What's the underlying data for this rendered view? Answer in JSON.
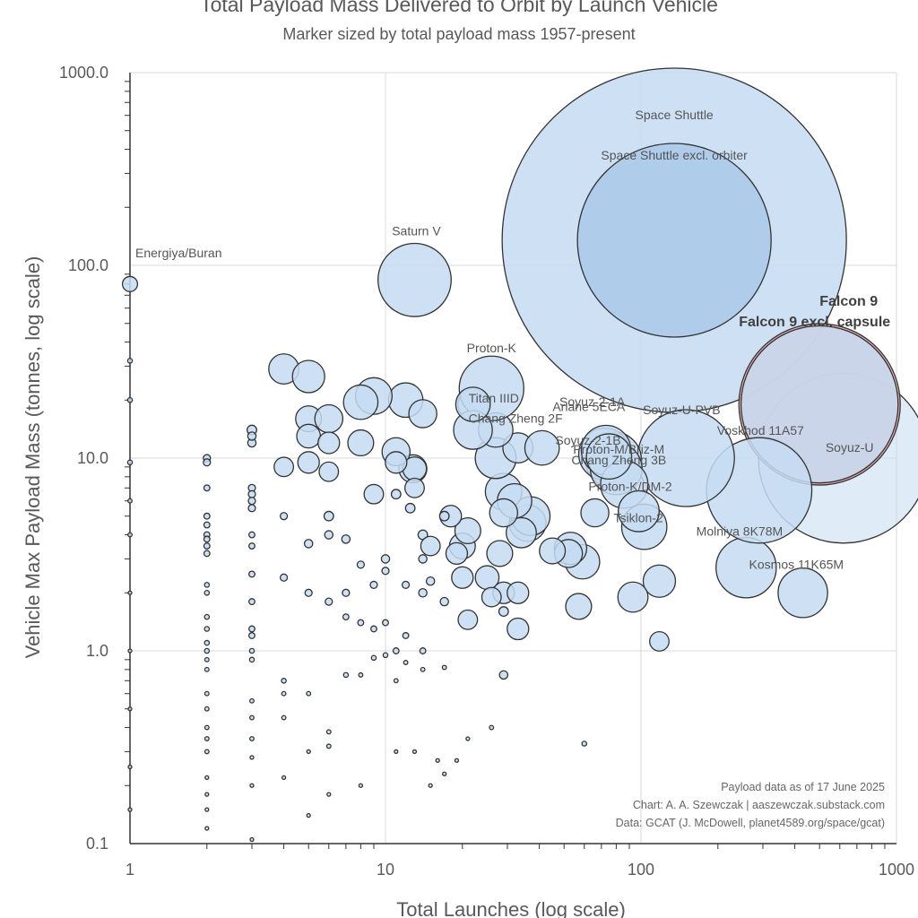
{
  "chart_data": {
    "type": "scatter",
    "title": "Total Payload Mass Delivered to Orbit by Launch Vehicle",
    "subtitle": "Marker sized by total payload mass 1957-present",
    "xlabel": "Total Launches (log scale)",
    "ylabel": "Vehicle Max Payload Mass (tonnes, log scale)",
    "x_scale": "log",
    "y_scale": "log",
    "xlim": [
      1,
      1000
    ],
    "ylim": [
      0.1,
      1000
    ],
    "x_ticks": [
      "1",
      "10",
      "100",
      "1000"
    ],
    "y_ticks": [
      "0.1",
      "1.0",
      "10.0",
      "100.0",
      "1000.0"
    ],
    "grid": true,
    "notes": [
      "Payload data as of 17 June 2025",
      "Chart: A. A. Szewczak | aaszewczak.substack.com",
      "Data: GCAT (J. McDowell, planet4589.org/space/gcat)"
    ],
    "colors": {
      "bubble_fill": "#c5dcf2",
      "bubble_fill_dark": "#a9c8e8",
      "falcon_fill": "#e7a3a9",
      "edge": "#333333",
      "grid": "#d9d9d9"
    },
    "labeled_points": [
      {
        "label": "Space Shuttle",
        "x": 135,
        "y": 135,
        "size": 16.0
      },
      {
        "label": "Space Shuttle excl. orbiter",
        "x": 135,
        "y": 135,
        "size": 9.0
      },
      {
        "label": "Saturn V",
        "x": 13,
        "y": 84,
        "size": 3.4
      },
      {
        "label": "Energiya/Buran",
        "x": 1,
        "y": 80,
        "size": 0.7
      },
      {
        "label": "Proton-K",
        "x": 26,
        "y": 23,
        "size": 3.0
      },
      {
        "label": "Titan IIID",
        "x": 22,
        "y": 19,
        "size": 1.6
      },
      {
        "label": "Chang Zheng 2F",
        "x": 22,
        "y": 14,
        "size": 1.8
      },
      {
        "label": "Falcon 9",
        "x": 500,
        "y": 19,
        "size": 7.5
      },
      {
        "label": "Falcon 9 excl. capsule",
        "x": 500,
        "y": 19,
        "size": 7.3
      },
      {
        "label": "Soyuz-U",
        "x": 620,
        "y": 10,
        "size": 7.9
      },
      {
        "label": "Soyuz-U-PVB",
        "x": 150,
        "y": 10,
        "size": 4.5
      },
      {
        "label": "Voskhod 11A57",
        "x": 290,
        "y": 6.8,
        "size": 4.9
      },
      {
        "label": "Ariane 5ECA",
        "x": 72,
        "y": 10.5,
        "size": 2.4
      },
      {
        "label": "Soyuz-2-1A",
        "x": 73,
        "y": 11.0,
        "size": 2.3
      },
      {
        "label": "Soyuz-2-1B",
        "x": 75,
        "y": 10.2,
        "size": 2.1
      },
      {
        "label": "Proton-M/Briz-M",
        "x": 78,
        "y": 9.8,
        "size": 2.6
      },
      {
        "label": "Chang Zheng 3B",
        "x": 80,
        "y": 8.8,
        "size": 2.4
      },
      {
        "label": "Proton-K/DM-2",
        "x": 86,
        "y": 7.3,
        "size": 2.2
      },
      {
        "label": "Tsiklon-2",
        "x": 98,
        "y": 5.3,
        "size": 1.9
      },
      {
        "label": "Molniya 8K78M",
        "x": 103,
        "y": 4.4,
        "size": 2.1
      },
      {
        "label": "Kosmos 11K65M",
        "x": 430,
        "y": 2.0,
        "size": 2.3
      }
    ],
    "unlabeled_points": [
      [
        258,
        2.7,
        2.8
      ],
      [
        118,
        2.3,
        1.5
      ],
      [
        93,
        1.9,
        1.4
      ],
      [
        57,
        1.7,
        1.2
      ],
      [
        118,
        1.12,
        0.9
      ],
      [
        59,
        2.9,
        1.6
      ],
      [
        53,
        3.4,
        1.5
      ],
      [
        52,
        3.2,
        1.3
      ],
      [
        45,
        3.3,
        1.2
      ],
      [
        36,
        4.6,
        1.7
      ],
      [
        37,
        5.0,
        1.8
      ],
      [
        34,
        4.1,
        1.4
      ],
      [
        29,
        6.7,
        1.7
      ],
      [
        32,
        6.0,
        1.6
      ],
      [
        29,
        5.2,
        1.3
      ],
      [
        27,
        10.0,
        1.9
      ],
      [
        33,
        11.3,
        1.4
      ],
      [
        41,
        11.3,
        1.6
      ],
      [
        22,
        19.0,
        1.4
      ],
      [
        27,
        14.0,
        1.6
      ],
      [
        66,
        5.2,
        1.3
      ],
      [
        28,
        3.2,
        1.2
      ],
      [
        25,
        2.4,
        1.1
      ],
      [
        20,
        3.5,
        1.2
      ],
      [
        21,
        4.2,
        1.2
      ],
      [
        18,
        5.0,
        1.0
      ],
      [
        19,
        3.2,
        1.0
      ],
      [
        20,
        2.4,
        1.0
      ],
      [
        29,
        2.0,
        1.0
      ],
      [
        33,
        2.0,
        1.0
      ],
      [
        21,
        1.45,
        0.9
      ],
      [
        26,
        1.9,
        0.9
      ],
      [
        29,
        1.6,
        0.8
      ],
      [
        33,
        1.3,
        1.0
      ],
      [
        29,
        0.75,
        0.7
      ],
      [
        12,
        20.0,
        1.6
      ],
      [
        9,
        21.0,
        1.7
      ],
      [
        8,
        19.5,
        1.6
      ],
      [
        14,
        17.0,
        1.3
      ],
      [
        12.8,
        8.8,
        1.3
      ],
      [
        4,
        29.0,
        1.4
      ],
      [
        5,
        26.5,
        1.5
      ],
      [
        5,
        16.0,
        1.2
      ],
      [
        6,
        16.0,
        1.3
      ],
      [
        5,
        13.0,
        1.1
      ],
      [
        6,
        12.0,
        1.0
      ],
      [
        8,
        12.0,
        1.2
      ],
      [
        11,
        10.8,
        1.3
      ],
      [
        13,
        8.8,
        1.1
      ],
      [
        11,
        9.5,
        1.0
      ],
      [
        5,
        9.5,
        1.0
      ],
      [
        4,
        9.0,
        0.9
      ],
      [
        6,
        8.5,
        0.9
      ],
      [
        9,
        6.5,
        0.9
      ],
      [
        11,
        6.5,
        0.8
      ],
      [
        13,
        7.0,
        0.9
      ],
      [
        12.5,
        5.5,
        0.8
      ],
      [
        14,
        4.0,
        0.8
      ],
      [
        15,
        3.5,
        0.9
      ],
      [
        17,
        5.0,
        0.8
      ],
      [
        14,
        3.0,
        0.7
      ],
      [
        15,
        2.3,
        0.7
      ],
      [
        14,
        2.0,
        0.7
      ],
      [
        12,
        2.2,
        0.6
      ],
      [
        17,
        1.8,
        0.7
      ],
      [
        10,
        3.0,
        0.7
      ],
      [
        10,
        2.6,
        0.6
      ],
      [
        9,
        2.2,
        0.6
      ],
      [
        8,
        2.8,
        0.6
      ],
      [
        7,
        2.0,
        0.6
      ],
      [
        7,
        3.8,
        0.7
      ],
      [
        6,
        5.0,
        0.8
      ],
      [
        6,
        4.0,
        0.7
      ],
      [
        5,
        3.6,
        0.7
      ],
      [
        4,
        5.0,
        0.6
      ],
      [
        4,
        2.4,
        0.6
      ],
      [
        5,
        2.0,
        0.6
      ],
      [
        6,
        1.8,
        0.6
      ],
      [
        7,
        1.5,
        0.5
      ],
      [
        8,
        1.4,
        0.5
      ],
      [
        9,
        1.3,
        0.5
      ],
      [
        10,
        1.4,
        0.5
      ],
      [
        12,
        1.2,
        0.5
      ],
      [
        14,
        1.0,
        0.5
      ],
      [
        11,
        1.0,
        0.5
      ],
      [
        3,
        14.0,
        0.8
      ],
      [
        3,
        12.0,
        0.7
      ],
      [
        3,
        13.0,
        0.7
      ],
      [
        3,
        7.0,
        0.6
      ],
      [
        3,
        6.5,
        0.6
      ],
      [
        3,
        6.0,
        0.6
      ],
      [
        3,
        5.5,
        0.6
      ],
      [
        3,
        4.0,
        0.5
      ],
      [
        3,
        3.5,
        0.5
      ],
      [
        3,
        2.5,
        0.5
      ],
      [
        3,
        1.8,
        0.5
      ],
      [
        3,
        1.3,
        0.5
      ],
      [
        3,
        1.2,
        0.5
      ],
      [
        3,
        1.0,
        0.4
      ],
      [
        3,
        0.9,
        0.4
      ],
      [
        2,
        10.0,
        0.6
      ],
      [
        2,
        9.5,
        0.6
      ],
      [
        2,
        7.0,
        0.5
      ],
      [
        2,
        5.0,
        0.5
      ],
      [
        2,
        4.5,
        0.5
      ],
      [
        2,
        4.0,
        0.5
      ],
      [
        2,
        3.8,
        0.5
      ],
      [
        2,
        3.5,
        0.5
      ],
      [
        2,
        3.2,
        0.5
      ],
      [
        2,
        2.2,
        0.4
      ],
      [
        2,
        2.0,
        0.4
      ],
      [
        2,
        1.5,
        0.4
      ],
      [
        2,
        1.3,
        0.4
      ],
      [
        2,
        1.1,
        0.4
      ],
      [
        2,
        1.0,
        0.4
      ],
      [
        2,
        0.9,
        0.35
      ],
      [
        2,
        0.8,
        0.35
      ],
      [
        2,
        0.6,
        0.35
      ],
      [
        2,
        0.5,
        0.35
      ],
      [
        2,
        0.4,
        0.35
      ],
      [
        2,
        0.35,
        0.35
      ],
      [
        2,
        0.3,
        0.35
      ],
      [
        2,
        0.22,
        0.3
      ],
      [
        2,
        0.18,
        0.3
      ],
      [
        2,
        0.15,
        0.3
      ],
      [
        2,
        0.12,
        0.3
      ],
      [
        3,
        0.55,
        0.35
      ],
      [
        3,
        0.45,
        0.35
      ],
      [
        3,
        0.35,
        0.35
      ],
      [
        3,
        0.28,
        0.3
      ],
      [
        3,
        0.2,
        0.3
      ],
      [
        3,
        0.105,
        0.3
      ],
      [
        4,
        0.7,
        0.4
      ],
      [
        4,
        0.6,
        0.35
      ],
      [
        4,
        0.45,
        0.35
      ],
      [
        4,
        0.22,
        0.3
      ],
      [
        5,
        0.6,
        0.35
      ],
      [
        5,
        0.3,
        0.3
      ],
      [
        5,
        0.14,
        0.3
      ],
      [
        6,
        0.38,
        0.35
      ],
      [
        6,
        0.32,
        0.35
      ],
      [
        6,
        0.18,
        0.3
      ],
      [
        7,
        0.75,
        0.4
      ],
      [
        8,
        0.2,
        0.3
      ],
      [
        9,
        0.92,
        0.4
      ],
      [
        10,
        0.95,
        0.4
      ],
      [
        11,
        0.3,
        0.3
      ],
      [
        12,
        0.87,
        0.35
      ],
      [
        13,
        0.3,
        0.3
      ],
      [
        15,
        0.2,
        0.3
      ],
      [
        16,
        0.27,
        0.3
      ],
      [
        17,
        0.23,
        0.3
      ],
      [
        19,
        0.27,
        0.3
      ],
      [
        21,
        0.35,
        0.3
      ],
      [
        26,
        0.4,
        0.35
      ],
      [
        60,
        0.33,
        0.4
      ],
      [
        17,
        0.82,
        0.35
      ],
      [
        14,
        0.8,
        0.35
      ],
      [
        11,
        0.7,
        0.35
      ],
      [
        8,
        0.75,
        0.35
      ],
      [
        1,
        32.0,
        0.4
      ],
      [
        1,
        20.0,
        0.4
      ],
      [
        1,
        9.5,
        0.4
      ],
      [
        1,
        6.0,
        0.35
      ],
      [
        1,
        4.0,
        0.35
      ],
      [
        1,
        2.0,
        0.3
      ],
      [
        1,
        1.0,
        0.3
      ],
      [
        1,
        0.5,
        0.3
      ],
      [
        1,
        0.25,
        0.3
      ],
      [
        1,
        0.15,
        0.3
      ]
    ]
  }
}
